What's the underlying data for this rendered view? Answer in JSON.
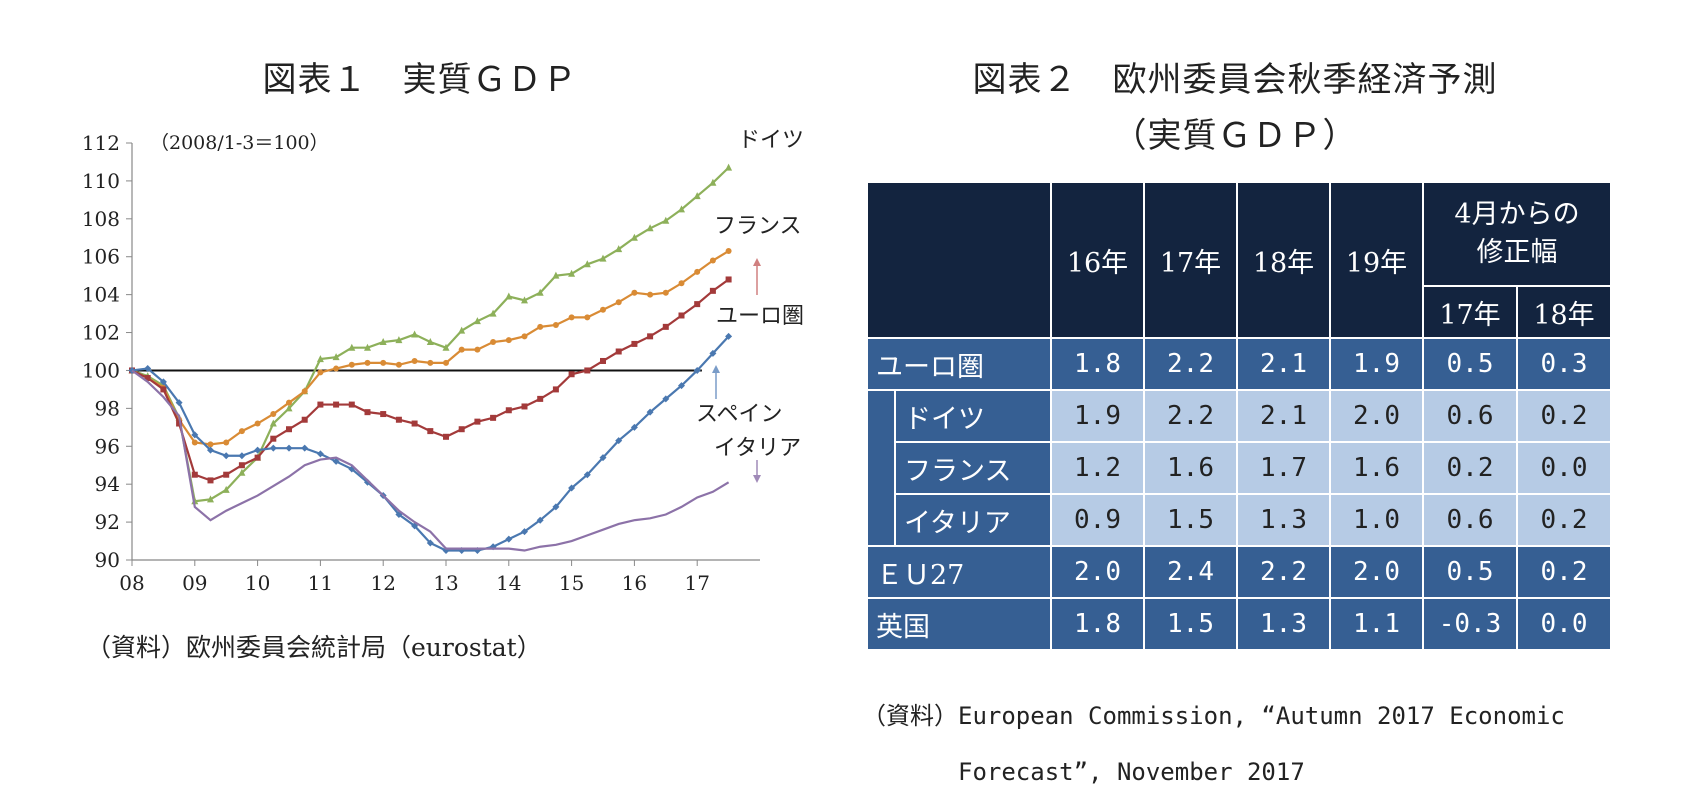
{
  "fig1": {
    "title": "図表１　実質ＧＤＰ",
    "source": "（資料）欧州委員会統計局（eurostat）"
  },
  "fig2": {
    "title_line1": "図表２　欧州委員会秋季経済予測",
    "title_line2": "（実質ＧＤＰ）",
    "source_line1": "（資料）European Commission, “Autumn 2017 Economic",
    "source_line2": "Forecast”, November 2017"
  },
  "chart_data": {
    "type": "line",
    "annotation": "（2008/1-3＝100）",
    "ylim": [
      90,
      112
    ],
    "yticks": [
      "90",
      "92",
      "94",
      "96",
      "98",
      "100",
      "102",
      "104",
      "106",
      "108",
      "110",
      "112"
    ],
    "xtick_labels": [
      "08",
      "09",
      "10",
      "11",
      "12",
      "13",
      "14",
      "15",
      "16",
      "17"
    ],
    "x_start": "2008Q1",
    "reference_line": 100,
    "series": [
      {
        "name": "ドイツ",
        "color": "#8db05a",
        "marker": "triangle",
        "values": [
          100.0,
          99.7,
          99.2,
          97.5,
          93.1,
          93.2,
          93.7,
          94.6,
          95.4,
          97.2,
          98.0,
          98.9,
          100.6,
          100.7,
          101.2,
          101.2,
          101.5,
          101.6,
          101.9,
          101.5,
          101.2,
          102.1,
          102.6,
          103.0,
          103.9,
          103.7,
          104.1,
          105.0,
          105.1,
          105.6,
          105.9,
          106.4,
          107.0,
          107.5,
          107.9,
          108.5,
          109.2,
          109.9,
          110.7
        ]
      },
      {
        "name": "フランス",
        "color": "#d98b35",
        "marker": "circle",
        "values": [
          100.0,
          99.6,
          99.1,
          97.4,
          96.2,
          96.1,
          96.2,
          96.8,
          97.2,
          97.7,
          98.3,
          98.9,
          99.9,
          100.1,
          100.3,
          100.4,
          100.4,
          100.3,
          100.5,
          100.4,
          100.4,
          101.1,
          101.1,
          101.5,
          101.6,
          101.8,
          102.3,
          102.4,
          102.8,
          102.8,
          103.2,
          103.6,
          104.1,
          104.0,
          104.1,
          104.6,
          105.2,
          105.8,
          106.3
        ]
      },
      {
        "name": "ユーロ圏",
        "color": "#a33a3a",
        "marker": "square",
        "values": [
          100.0,
          99.6,
          99.0,
          97.2,
          94.5,
          94.2,
          94.5,
          95.0,
          95.4,
          96.4,
          96.9,
          97.4,
          98.2,
          98.2,
          98.2,
          97.8,
          97.7,
          97.4,
          97.2,
          96.8,
          96.5,
          96.9,
          97.3,
          97.5,
          97.9,
          98.1,
          98.5,
          99.0,
          99.8,
          100.0,
          100.5,
          101.0,
          101.4,
          101.8,
          102.3,
          102.9,
          103.5,
          104.2,
          104.8
        ]
      },
      {
        "name": "スペイン",
        "color": "#4a78b0",
        "marker": "diamond",
        "values": [
          100.0,
          100.1,
          99.4,
          98.3,
          96.6,
          95.8,
          95.5,
          95.5,
          95.8,
          95.9,
          95.9,
          95.9,
          95.6,
          95.2,
          94.8,
          94.1,
          93.4,
          92.4,
          91.8,
          90.9,
          90.5,
          90.5,
          90.5,
          90.7,
          91.1,
          91.5,
          92.1,
          92.8,
          93.8,
          94.5,
          95.4,
          96.3,
          97.0,
          97.8,
          98.5,
          99.2,
          100.0,
          100.9,
          101.8
        ]
      },
      {
        "name": "イタリア",
        "color": "#8c72a8",
        "marker": "none",
        "values": [
          100.0,
          99.4,
          98.6,
          97.6,
          92.8,
          92.1,
          92.6,
          93.0,
          93.4,
          93.9,
          94.4,
          95.0,
          95.3,
          95.4,
          95.0,
          94.2,
          93.4,
          92.6,
          92.0,
          91.5,
          90.6,
          90.6,
          90.6,
          90.6,
          90.6,
          90.5,
          90.7,
          90.8,
          91.0,
          91.3,
          91.6,
          91.9,
          92.1,
          92.2,
          92.4,
          92.8,
          93.3,
          93.6,
          94.1
        ]
      }
    ],
    "series_labels": {
      "Germany": "ドイツ",
      "France": "フランス",
      "Euro": "ユーロ圏",
      "Spain": "スペイン",
      "Italy": "イタリア"
    }
  },
  "table": {
    "years": [
      "16年",
      "17年",
      "18年",
      "19年"
    ],
    "rev_header": "4月からの修正幅",
    "rev_header_line1": "4月からの",
    "rev_header_line2": "修正幅",
    "rev_years": [
      "17年",
      "18年"
    ],
    "rows": [
      {
        "label": "ユーロ圏",
        "cells": [
          "1.8",
          "2.2",
          "2.1",
          "1.9",
          "0.5",
          "0.3"
        ]
      },
      {
        "label": "ドイツ",
        "cells": [
          "1.9",
          "2.2",
          "2.1",
          "2.0",
          "0.6",
          "0.2"
        ]
      },
      {
        "label": "フランス",
        "cells": [
          "1.2",
          "1.6",
          "1.7",
          "1.6",
          "0.2",
          "0.0"
        ]
      },
      {
        "label": "イタリア",
        "cells": [
          "0.9",
          "1.5",
          "1.3",
          "1.0",
          "0.6",
          "0.2"
        ]
      },
      {
        "label": "ＥＵ27",
        "cells": [
          "2.0",
          "2.4",
          "2.2",
          "2.0",
          "0.5",
          "0.2"
        ]
      },
      {
        "label": "英国",
        "cells": [
          "1.8",
          "1.5",
          "1.3",
          "1.1",
          "-0.3",
          "0.0"
        ]
      }
    ]
  }
}
